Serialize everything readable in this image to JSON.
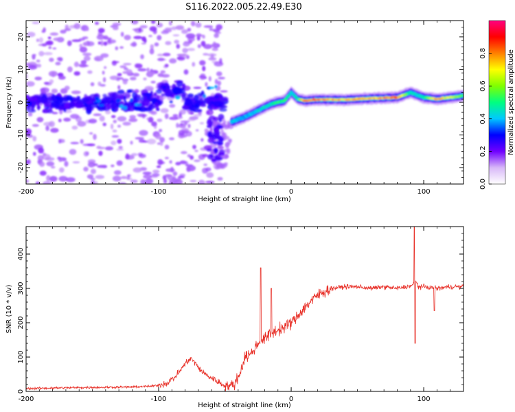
{
  "title": "S116.2022.005.22.49.E30",
  "chart_data": [
    {
      "type": "heatmap",
      "panel": "spectrogram",
      "xlabel": "Height of straight line (km)",
      "ylabel": "Frequency (Hz)",
      "xlim": [
        -200,
        130
      ],
      "ylim": [
        -25,
        25
      ],
      "xticks": [
        -200,
        -100,
        0,
        100
      ],
      "yticks": [
        -20,
        -10,
        0,
        10,
        20
      ],
      "colorbar": {
        "label": "Normalized spectral amplitude",
        "range": [
          0.0,
          1.0
        ],
        "ticks": [
          0.0,
          0.2,
          0.4,
          0.6,
          0.8
        ],
        "tick_labels": [
          "0.0",
          "0.2",
          "0.4",
          "0.6",
          "0.8"
        ],
        "colors": [
          "#ffffff",
          "#d8b8f8",
          "#7000ff",
          "#0000ff",
          "#00c8ff",
          "#00ff80",
          "#80ff00",
          "#ffff00",
          "#ff8000",
          "#ff0000",
          "#ff0080"
        ]
      },
      "ridge": {
        "x": [
          -45,
          -35,
          -25,
          -15,
          -5,
          0,
          5,
          10,
          20,
          40,
          60,
          80,
          90,
          100,
          110,
          120,
          130
        ],
        "y": [
          -6,
          -4.5,
          -2.5,
          -0.5,
          0.5,
          3,
          1,
          0.5,
          0.8,
          0.8,
          1.2,
          1.5,
          3,
          1.5,
          1,
          1.5,
          2
        ],
        "amplitude": [
          0.45,
          0.4,
          0.45,
          0.5,
          0.6,
          0.45,
          0.5,
          0.9,
          0.85,
          0.8,
          0.8,
          0.9,
          0.5,
          0.5,
          0.85,
          0.7,
          0.6
        ]
      }
    },
    {
      "type": "line",
      "panel": "snr",
      "xlabel": "Height of straight line (km)",
      "ylabel": "SNR (10 * v/v)",
      "xlim": [
        -200,
        130
      ],
      "ylim": [
        0,
        480
      ],
      "xticks": [
        -200,
        -100,
        0,
        100
      ],
      "yticks": [
        0,
        100,
        200,
        300,
        400
      ],
      "color": "#e8322a",
      "series": [
        {
          "name": "SNR",
          "x": [
            -200,
            -180,
            -160,
            -140,
            -120,
            -105,
            -95,
            -88,
            -82,
            -78,
            -75,
            -72,
            -68,
            -63,
            -58,
            -52,
            -46,
            -42,
            -38,
            -35,
            -30,
            -25,
            -22,
            -18,
            -12,
            -6,
            0,
            4,
            8,
            14,
            20,
            30,
            40,
            50,
            60,
            70,
            80,
            88,
            92,
            94,
            96,
            100,
            110,
            120,
            130
          ],
          "y": [
            8,
            10,
            11,
            12,
            13,
            15,
            22,
            40,
            70,
            90,
            95,
            80,
            60,
            45,
            35,
            20,
            15,
            25,
            60,
            100,
            110,
            140,
            150,
            160,
            175,
            185,
            200,
            215,
            235,
            260,
            280,
            300,
            305,
            305,
            300,
            305,
            300,
            305,
            310,
            320,
            305,
            305,
            300,
            305,
            305
          ],
          "spikes": [
            {
              "x": -23,
              "y": 360
            },
            {
              "x": -15,
              "y": 300
            },
            {
              "x": 93,
              "y": 480
            },
            {
              "x": 93.5,
              "y": 140
            },
            {
              "x": 108,
              "y": 235
            }
          ]
        }
      ]
    }
  ]
}
